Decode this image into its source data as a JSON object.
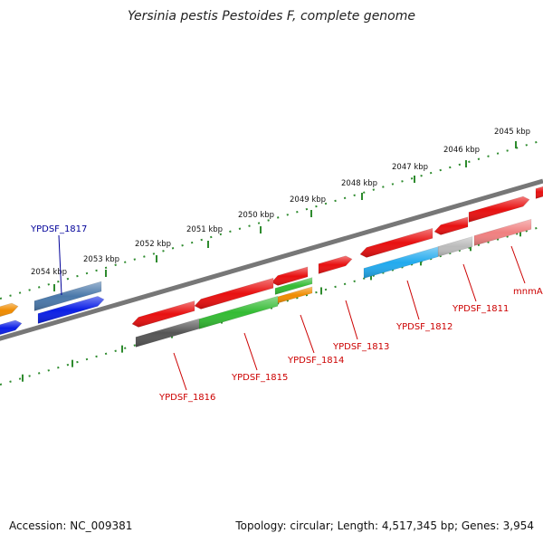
{
  "title": "Yersinia pestis Pestoides F, complete genome",
  "footer": {
    "accession": "Accession: NC_009381",
    "stats": "Topology: circular; Length: 4,517,345 bp; Genes: 3,954"
  },
  "ruler_ticks": [
    {
      "label": "2045 kbp",
      "kbp": 2045
    },
    {
      "label": "2046 kbp",
      "kbp": 2046
    },
    {
      "label": "2047 kbp",
      "kbp": 2047
    },
    {
      "label": "2048 kbp",
      "kbp": 2048
    },
    {
      "label": "2049 kbp",
      "kbp": 2049
    },
    {
      "label": "2050 kbp",
      "kbp": 2050
    },
    {
      "label": "2051 kbp",
      "kbp": 2051
    },
    {
      "label": "2052 kbp",
      "kbp": 2052
    },
    {
      "label": "2053 kbp",
      "kbp": 2053
    },
    {
      "label": "2054 kbp",
      "kbp": 2054
    }
  ],
  "gene_labels": [
    {
      "id": "mnmA",
      "text": "mnmA",
      "color": "#cc0000"
    },
    {
      "id": "ypdsf-1811",
      "text": "YPDSF_1811",
      "color": "#cc0000"
    },
    {
      "id": "ypdsf-1812",
      "text": "YPDSF_1812",
      "color": "#cc0000"
    },
    {
      "id": "ypdsf-1813",
      "text": "YPDSF_1813",
      "color": "#cc0000"
    },
    {
      "id": "ypdsf-1814",
      "text": "YPDSF_1814",
      "color": "#cc0000"
    },
    {
      "id": "ypdsf-1815",
      "text": "YPDSF_1815",
      "color": "#cc0000"
    },
    {
      "id": "ypdsf-1816",
      "text": "YPDSF_1816",
      "color": "#cc0000"
    },
    {
      "id": "ypdsf-1817",
      "text": "YPDSF_1817",
      "color": "#000099"
    }
  ],
  "colors": {
    "backbone": "#777777",
    "ruler": "#2e8b2e",
    "red_gene": "#e81010",
    "pink_gene": "#f08080",
    "grey_gene": "#bbbbbb",
    "dark_gene": "#555555",
    "green_gene": "#33bb33",
    "cyan_gene": "#22aaee",
    "orange_gene": "#f08c00",
    "blue_gene": "#0a1ee6",
    "steel_gene": "#4a78aa"
  }
}
